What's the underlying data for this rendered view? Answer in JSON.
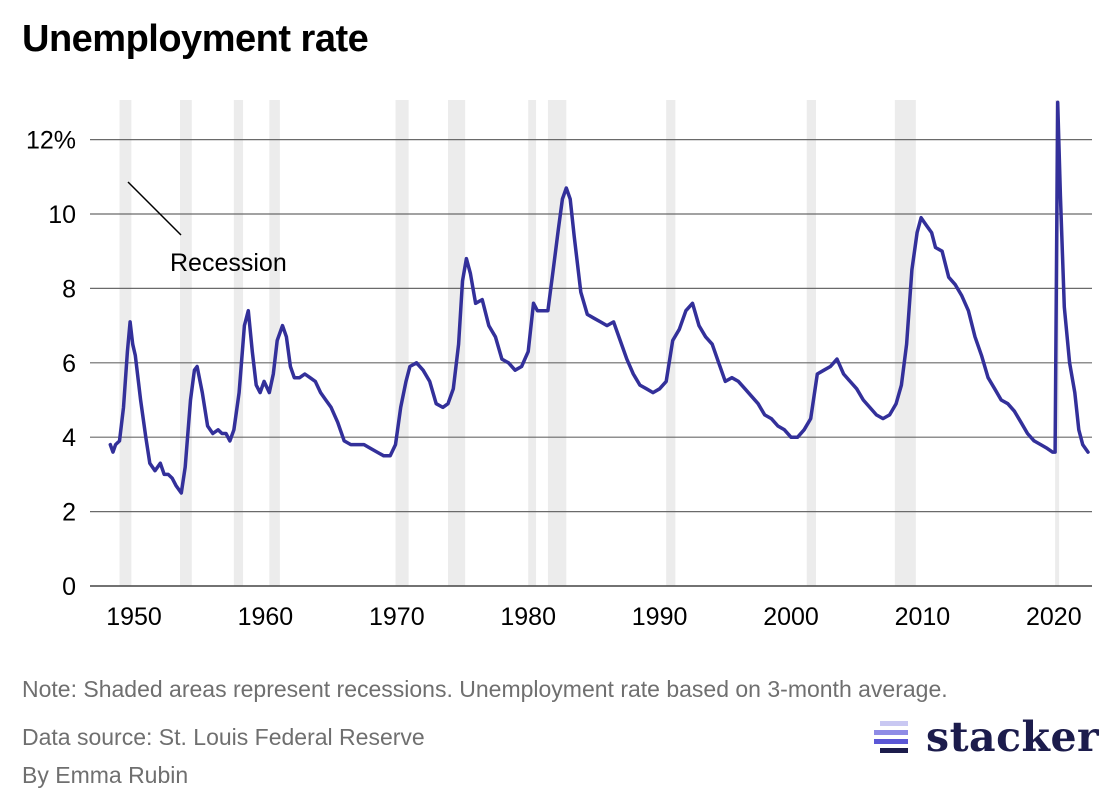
{
  "title": "Unemployment rate",
  "chart_data": {
    "type": "line",
    "title": "Unemployment rate",
    "xlabel": "",
    "ylabel": "",
    "xlim": [
      1947.5,
      2023
    ],
    "ylim": [
      0,
      12.8
    ],
    "y_ticks": [
      0,
      2,
      4,
      6,
      8,
      10,
      12
    ],
    "y_tick_labels": [
      "0",
      "2",
      "4",
      "6",
      "8",
      "10",
      "12%"
    ],
    "x_ticks": [
      1950,
      1960,
      1970,
      1980,
      1990,
      2000,
      2010,
      2020
    ],
    "x_tick_labels": [
      "1950",
      "1960",
      "1970",
      "1980",
      "1990",
      "2000",
      "2010",
      "2020"
    ],
    "grid": "horizontal",
    "line_color": "#33309a",
    "recession_color": "#ececec",
    "annotation": "Recession",
    "recessions": [
      [
        1948.9,
        1949.8
      ],
      [
        1953.5,
        1954.4
      ],
      [
        1957.6,
        1958.3
      ],
      [
        1960.3,
        1961.1
      ],
      [
        1969.9,
        1970.9
      ],
      [
        1973.9,
        1975.2
      ],
      [
        1980.0,
        1980.6
      ],
      [
        1981.5,
        1982.9
      ],
      [
        1990.5,
        1991.2
      ],
      [
        2001.2,
        2001.9
      ],
      [
        2007.9,
        2009.5
      ],
      [
        2020.1,
        2020.35
      ]
    ],
    "series": [
      {
        "x": [
          1948.2,
          1948.4,
          1948.6,
          1948.9,
          1949.2,
          1949.5,
          1949.7,
          1949.9,
          1950.1,
          1950.5,
          1950.9,
          1951.2,
          1951.6,
          1952.0,
          1952.3,
          1952.6,
          1952.9,
          1953.2,
          1953.6,
          1953.9,
          1954.3,
          1954.6,
          1954.8,
          1955.2,
          1955.6,
          1956.0,
          1956.4,
          1956.7,
          1957.0,
          1957.3,
          1957.6,
          1958.0,
          1958.4,
          1958.7,
          1959.0,
          1959.3,
          1959.6,
          1959.9,
          1960.3,
          1960.6,
          1960.9,
          1961.3,
          1961.6,
          1961.9,
          1962.2,
          1962.6,
          1963.0,
          1963.4,
          1963.8,
          1964.2,
          1964.6,
          1965.0,
          1965.5,
          1966.0,
          1966.5,
          1967.0,
          1967.5,
          1968.0,
          1968.5,
          1969.0,
          1969.5,
          1969.9,
          1970.3,
          1970.7,
          1971.0,
          1971.5,
          1972.0,
          1972.5,
          1973.0,
          1973.5,
          1973.9,
          1974.3,
          1974.7,
          1975.0,
          1975.3,
          1975.6,
          1976.0,
          1976.5,
          1977.0,
          1977.5,
          1978.0,
          1978.5,
          1979.0,
          1979.5,
          1980.0,
          1980.4,
          1980.7,
          1981.0,
          1981.5,
          1981.9,
          1982.3,
          1982.6,
          1982.9,
          1983.2,
          1983.5,
          1984.0,
          1984.5,
          1985.0,
          1985.5,
          1986.0,
          1986.5,
          1987.0,
          1987.5,
          1988.0,
          1988.5,
          1989.0,
          1989.5,
          1990.0,
          1990.5,
          1991.0,
          1991.5,
          1992.0,
          1992.5,
          1993.0,
          1993.5,
          1994.0,
          1994.5,
          1995.0,
          1995.5,
          1996.0,
          1996.5,
          1997.0,
          1997.5,
          1998.0,
          1998.5,
          1999.0,
          1999.5,
          2000.0,
          2000.5,
          2001.0,
          2001.5,
          2002.0,
          2002.5,
          2003.0,
          2003.5,
          2004.0,
          2004.5,
          2005.0,
          2005.5,
          2006.0,
          2006.5,
          2007.0,
          2007.5,
          2008.0,
          2008.4,
          2008.8,
          2009.2,
          2009.6,
          2009.9,
          2010.3,
          2010.7,
          2011.0,
          2011.5,
          2012.0,
          2012.5,
          2013.0,
          2013.5,
          2014.0,
          2014.5,
          2015.0,
          2015.5,
          2016.0,
          2016.5,
          2017.0,
          2017.5,
          2018.0,
          2018.5,
          2019.0,
          2019.5,
          2019.9,
          2020.1,
          2020.3,
          2020.5,
          2020.8,
          2021.2,
          2021.6,
          2021.9,
          2022.2,
          2022.6
        ],
        "values": [
          3.8,
          3.6,
          3.8,
          3.9,
          4.8,
          6.3,
          7.1,
          6.5,
          6.2,
          5.0,
          4.0,
          3.3,
          3.1,
          3.3,
          3.0,
          3.0,
          2.9,
          2.7,
          2.5,
          3.2,
          5.0,
          5.8,
          5.9,
          5.2,
          4.3,
          4.1,
          4.2,
          4.1,
          4.1,
          3.9,
          4.2,
          5.2,
          7.0,
          7.4,
          6.3,
          5.4,
          5.2,
          5.5,
          5.2,
          5.7,
          6.6,
          7.0,
          6.7,
          5.9,
          5.6,
          5.6,
          5.7,
          5.6,
          5.5,
          5.2,
          5.0,
          4.8,
          4.4,
          3.9,
          3.8,
          3.8,
          3.8,
          3.7,
          3.6,
          3.5,
          3.5,
          3.8,
          4.8,
          5.5,
          5.9,
          6.0,
          5.8,
          5.5,
          4.9,
          4.8,
          4.9,
          5.3,
          6.5,
          8.2,
          8.8,
          8.4,
          7.6,
          7.7,
          7.0,
          6.7,
          6.1,
          6.0,
          5.8,
          5.9,
          6.3,
          7.6,
          7.4,
          7.4,
          7.4,
          8.5,
          9.6,
          10.4,
          10.7,
          10.4,
          9.4,
          7.9,
          7.3,
          7.2,
          7.1,
          7.0,
          7.1,
          6.6,
          6.1,
          5.7,
          5.4,
          5.3,
          5.2,
          5.3,
          5.5,
          6.6,
          6.9,
          7.4,
          7.6,
          7.0,
          6.7,
          6.5,
          6.0,
          5.5,
          5.6,
          5.5,
          5.3,
          5.1,
          4.9,
          4.6,
          4.5,
          4.3,
          4.2,
          4.0,
          4.0,
          4.2,
          4.5,
          5.7,
          5.8,
          5.9,
          6.1,
          5.7,
          5.5,
          5.3,
          5.0,
          4.8,
          4.6,
          4.5,
          4.6,
          4.9,
          5.4,
          6.5,
          8.5,
          9.5,
          9.9,
          9.7,
          9.5,
          9.1,
          9.0,
          8.3,
          8.1,
          7.8,
          7.4,
          6.7,
          6.2,
          5.6,
          5.3,
          5.0,
          4.9,
          4.7,
          4.4,
          4.1,
          3.9,
          3.8,
          3.7,
          3.6,
          3.6,
          13.0,
          10.5,
          7.5,
          6.0,
          5.2,
          4.2,
          3.8,
          3.6
        ]
      }
    ]
  },
  "footer": {
    "note": "Note: Shaded areas represent recessions. Unemployment rate based on 3-month average.",
    "source": "Data source: St. Louis Federal Reserve",
    "byline": "By Emma Rubin"
  },
  "logo": {
    "wordmark": "stacker",
    "color": "#1c1c4c",
    "accent": "#5b57d6"
  }
}
